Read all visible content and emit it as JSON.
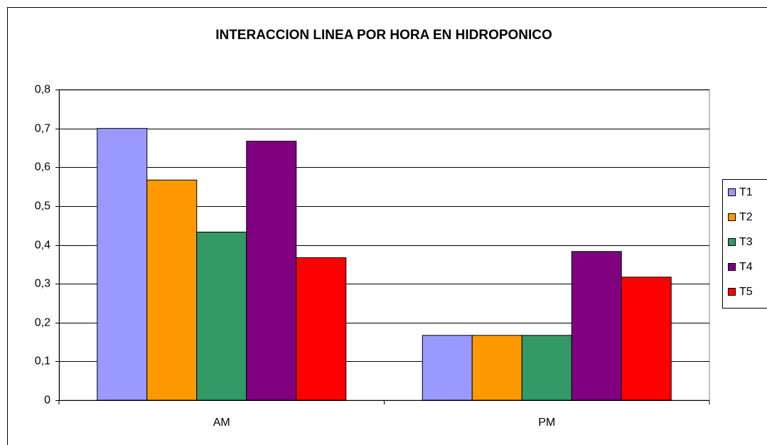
{
  "chart_data": {
    "type": "bar",
    "title": "INTERACCION LINEA POR HORA EN HIDROPONICO",
    "categories": [
      "AM",
      "PM"
    ],
    "series": [
      {
        "name": "T1",
        "color": "#9999ff",
        "values": [
          0.7,
          0.167
        ]
      },
      {
        "name": "T2",
        "color": "#ff9900",
        "values": [
          0.567,
          0.167
        ]
      },
      {
        "name": "T3",
        "color": "#339966",
        "values": [
          0.433,
          0.167
        ]
      },
      {
        "name": "T4",
        "color": "#800080",
        "values": [
          0.667,
          0.383
        ]
      },
      {
        "name": "T5",
        "color": "#ff0000",
        "values": [
          0.367,
          0.317
        ]
      }
    ],
    "ylim": [
      0,
      0.8
    ],
    "yticks": [
      0,
      {
        "value": 0.1,
        "label": "0,1"
      },
      {
        "value": 0.2,
        "label": "0,2"
      },
      {
        "value": 0.3,
        "label": "0,3"
      },
      {
        "value": 0.4,
        "label": "0,4"
      },
      {
        "value": 0.5,
        "label": "0,5"
      },
      {
        "value": 0.6,
        "label": "0,6"
      },
      {
        "value": 0.7,
        "label": "0,7"
      },
      {
        "value": 0.8,
        "label": "0,8"
      }
    ],
    "grid": true,
    "legend": "right"
  }
}
